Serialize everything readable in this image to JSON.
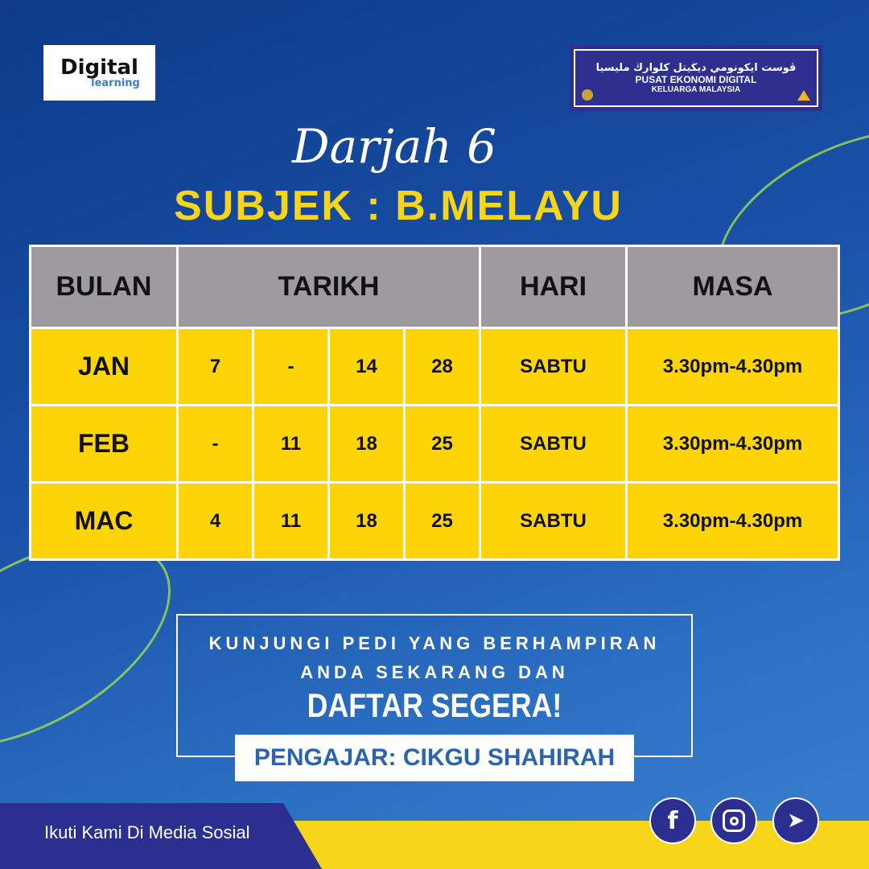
{
  "logos": {
    "left": {
      "line1": "Digital",
      "line2": "learning"
    },
    "right": {
      "jawi": "ڤوست ايكونومي ديڬيتل كلوارڬ مليسيا",
      "line1": "PUSAT EKONOMI DIGITAL",
      "line2": "KELUARGA MALAYSIA"
    }
  },
  "title": "Darjah 6",
  "subtitle": "SUBJEK : B.MELAYU",
  "table": {
    "headers": [
      "BULAN",
      "TARIKH",
      "HARI",
      "MASA"
    ],
    "rows": [
      {
        "bulan": "JAN",
        "tarikh": [
          "7",
          "-",
          "14",
          "28"
        ],
        "hari": "SABTU",
        "masa": "3.30pm-4.30pm"
      },
      {
        "bulan": "FEB",
        "tarikh": [
          "-",
          "11",
          "18",
          "25"
        ],
        "hari": "SABTU",
        "masa": "3.30pm-4.30pm"
      },
      {
        "bulan": "MAC",
        "tarikh": [
          "4",
          "11",
          "18",
          "25"
        ],
        "hari": "SABTU",
        "masa": "3.30pm-4.30pm"
      }
    ]
  },
  "cta": {
    "line1": "KUNJUNGI PEDI YANG BERHAMPIRAN",
    "line2": "ANDA SEKARANG DAN",
    "line3": "DAFTAR SEGERA!"
  },
  "teacher": "PENGAJAR: CIKGU SHAHIRAH",
  "social": {
    "label": "Ikuti Kami Di Media Sosial",
    "icons": [
      "facebook-icon",
      "instagram-icon",
      "telegram-icon"
    ]
  },
  "colors": {
    "yellow": "#fdd406",
    "blue": "#1a52a8",
    "header_gray": "#9d9aa0",
    "navy": "#2c2f8f"
  }
}
